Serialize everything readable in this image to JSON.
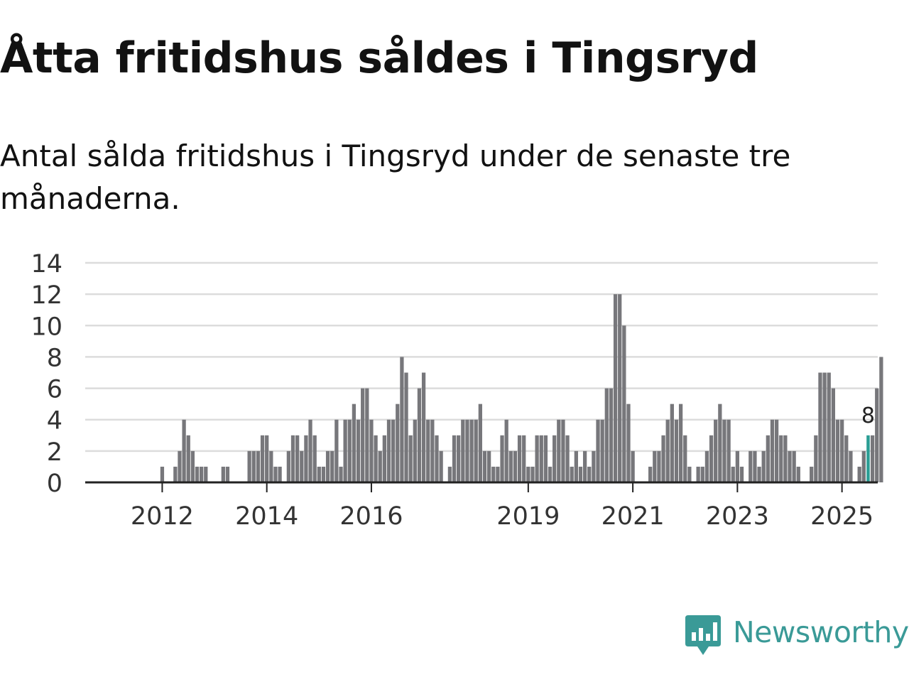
{
  "title": "Åtta fritidshus såldes i Tingsryd",
  "subtitle": "Antal sålda fritidshus i Tingsryd under de senaste tre månaderna.",
  "brand": "Newsworthy",
  "colors": {
    "bar": "#77777b",
    "highlight": "#2a9d94",
    "grid": "#dcdcdc",
    "axis": "#222222",
    "brand": "#3a9a97"
  },
  "chart_data": {
    "type": "bar",
    "ylim": [
      0,
      14
    ],
    "yticks": [
      "0",
      "2",
      "4",
      "6",
      "8",
      "10",
      "12",
      "14"
    ],
    "xticks": [
      {
        "label": "2012",
        "index": 9
      },
      {
        "label": "2014",
        "index": 33
      },
      {
        "label": "2016",
        "index": 57
      },
      {
        "label": "2019",
        "index": 93
      },
      {
        "label": "2021",
        "index": 117
      },
      {
        "label": "2023",
        "index": 141
      },
      {
        "label": "2025",
        "index": 165
      }
    ],
    "values": [
      0,
      0,
      0,
      0,
      0,
      0,
      0,
      0,
      0,
      1,
      0,
      0,
      1,
      2,
      4,
      3,
      2,
      1,
      1,
      1,
      0,
      0,
      0,
      1,
      1,
      0,
      0,
      0,
      0,
      2,
      2,
      2,
      3,
      3,
      2,
      1,
      1,
      0,
      2,
      3,
      3,
      2,
      3,
      4,
      3,
      1,
      1,
      2,
      2,
      4,
      1,
      4,
      4,
      5,
      4,
      6,
      6,
      4,
      3,
      2,
      3,
      4,
      4,
      5,
      8,
      7,
      3,
      4,
      6,
      7,
      4,
      4,
      3,
      2,
      0,
      1,
      3,
      3,
      4,
      4,
      4,
      4,
      5,
      2,
      2,
      1,
      1,
      3,
      4,
      2,
      2,
      3,
      3,
      1,
      1,
      3,
      3,
      3,
      1,
      3,
      4,
      4,
      3,
      1,
      2,
      1,
      2,
      1,
      2,
      4,
      4,
      6,
      6,
      12,
      12,
      10,
      5,
      2,
      0,
      0,
      0,
      1,
      2,
      2,
      3,
      4,
      5,
      4,
      5,
      3,
      1,
      0,
      1,
      1,
      2,
      3,
      4,
      5,
      4,
      4,
      1,
      2,
      1,
      0,
      2,
      2,
      1,
      2,
      3,
      4,
      4,
      3,
      3,
      2,
      2,
      1,
      0,
      0,
      1,
      3,
      7,
      7,
      7,
      6,
      4,
      4,
      3,
      2,
      0,
      1,
      2,
      3,
      3,
      6,
      8
    ],
    "highlight_index": 171,
    "highlight_label": "8"
  }
}
